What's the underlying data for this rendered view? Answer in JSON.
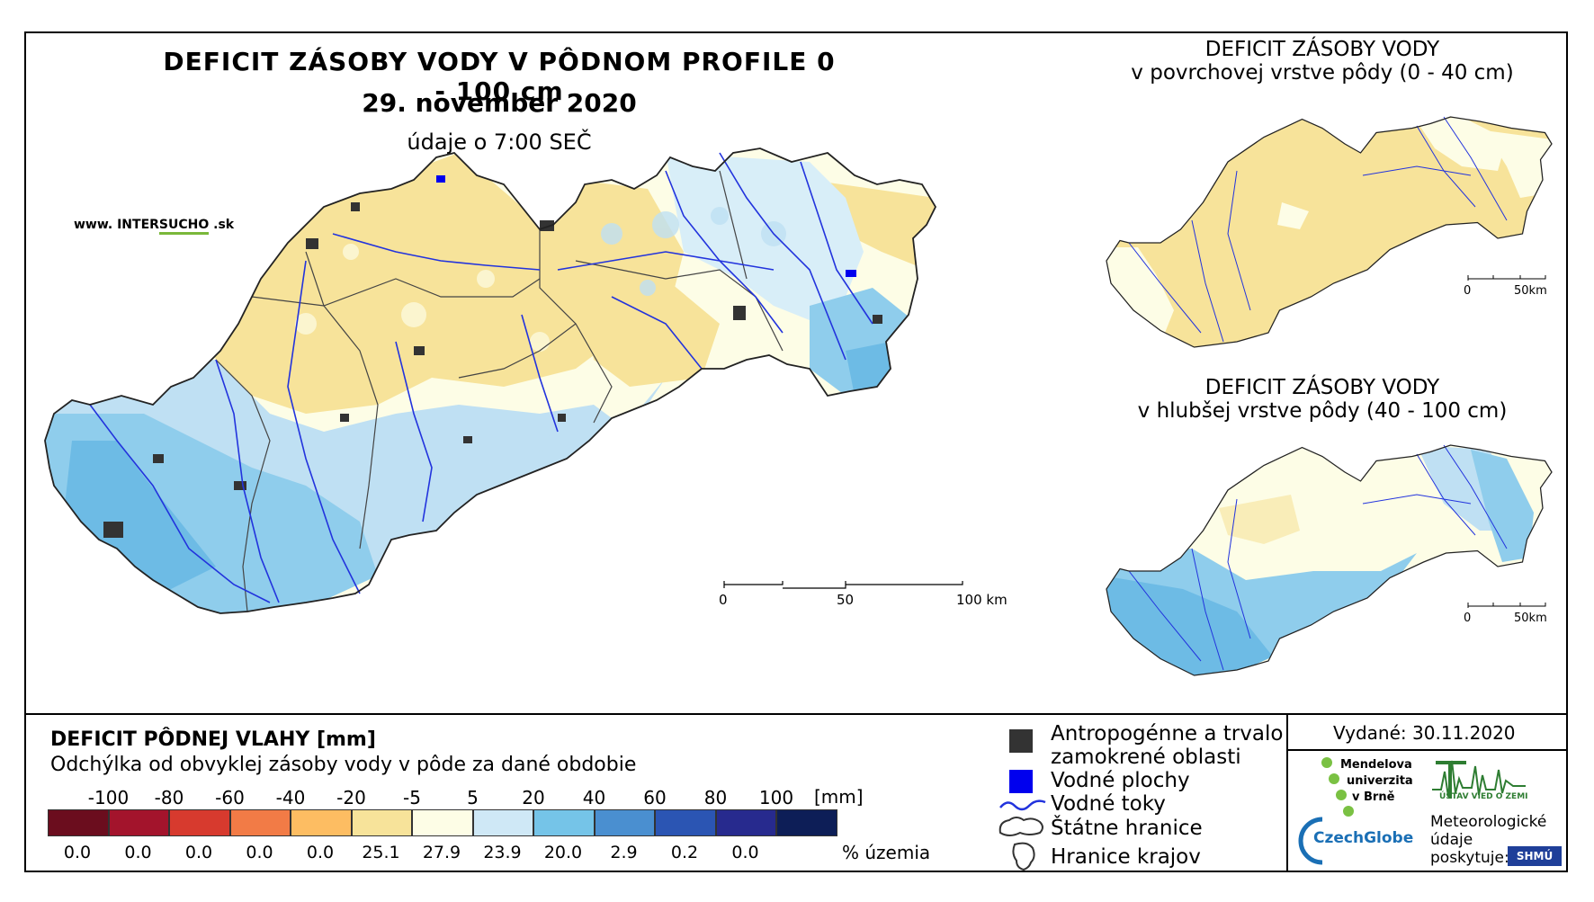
{
  "map": {
    "title": "DEFICIT ZÁSOBY VODY V PÔDNOM PROFILE 0 - 100 cm",
    "date": "29. november 2020",
    "time_note": "údaje o 7:00 SEČ",
    "website": {
      "pre": "www. INTER",
      "highlight": "SUCHO",
      "post": " .sk"
    },
    "main_scale": {
      "labels": [
        "0",
        "50",
        "100 km"
      ]
    }
  },
  "inset_top": {
    "title_line1": "DEFICIT ZÁSOBY VODY",
    "title_line2": "v povrchovej vrstve pôdy (0 - 40 cm)",
    "scale_labels": [
      "0",
      "50km"
    ]
  },
  "inset_bottom": {
    "title_line1": "DEFICIT ZÁSOBY VODY",
    "title_line2": "v hlubšej vrstve pôdy (40 - 100 cm)",
    "scale_labels": [
      "0",
      "50km"
    ]
  },
  "legend": {
    "title": "DEFICIT PÔDNEJ VLAHY [mm]",
    "subtitle": "Odchýlka od obvyklej zásoby vody v pôde za dané obdobie",
    "unit": "[mm]",
    "pct_label": "% územia",
    "ticks": [
      "-100",
      "-80",
      "-60",
      "-40",
      "-20",
      "-5",
      "5",
      "20",
      "40",
      "60",
      "80",
      "100"
    ],
    "classes": [
      {
        "color": "#6b0d1e",
        "pct": "0.0"
      },
      {
        "color": "#a3142c",
        "pct": "0.0"
      },
      {
        "color": "#d73a2e",
        "pct": "0.0"
      },
      {
        "color": "#f27b46",
        "pct": "0.0"
      },
      {
        "color": "#fdbd62",
        "pct": "0.0"
      },
      {
        "color": "#f7e39a",
        "pct": "25.1"
      },
      {
        "color": "#fdfde6",
        "pct": "27.9"
      },
      {
        "color": "#cfe8f6",
        "pct": "23.9"
      },
      {
        "color": "#75c4e8",
        "pct": "20.0"
      },
      {
        "color": "#4a8fd0",
        "pct": "2.9"
      },
      {
        "color": "#2b55b3",
        "pct": "0.2"
      },
      {
        "color": "#272a8e",
        "pct": "0.0"
      },
      {
        "color": "#0d1e57",
        "pct": ""
      }
    ]
  },
  "map_legend": {
    "items": [
      {
        "icon": "urban-area-icon",
        "label": "Antropogénne a trvalo zamokrené oblasti"
      },
      {
        "icon": "water-body-icon",
        "label": "Vodné plochy"
      },
      {
        "icon": "river-icon",
        "label": "Vodné toky"
      },
      {
        "icon": "state-border-icon",
        "label": "Štátne hranice"
      },
      {
        "icon": "region-border-icon",
        "label": "Hranice krajov"
      }
    ]
  },
  "credits": {
    "issued": "Vydané: 30.11.2020",
    "mendelu": [
      "Mendelova",
      "univerzita",
      "v Brně"
    ],
    "czechglobe": "CzechGlobe",
    "uvgz": "ÚSTAV VIED O ZEMI",
    "meteo": [
      "Meteorologické",
      "údaje",
      "poskytuje:"
    ],
    "shmu": "SHMÚ"
  },
  "colors": {
    "deficit_yellow": "#f7e39a",
    "neutral": "#fdfde6",
    "surplus_light": "#cfe8f6",
    "surplus_mid": "#75c4e8",
    "river": "#2233dd",
    "urban": "#333333"
  }
}
